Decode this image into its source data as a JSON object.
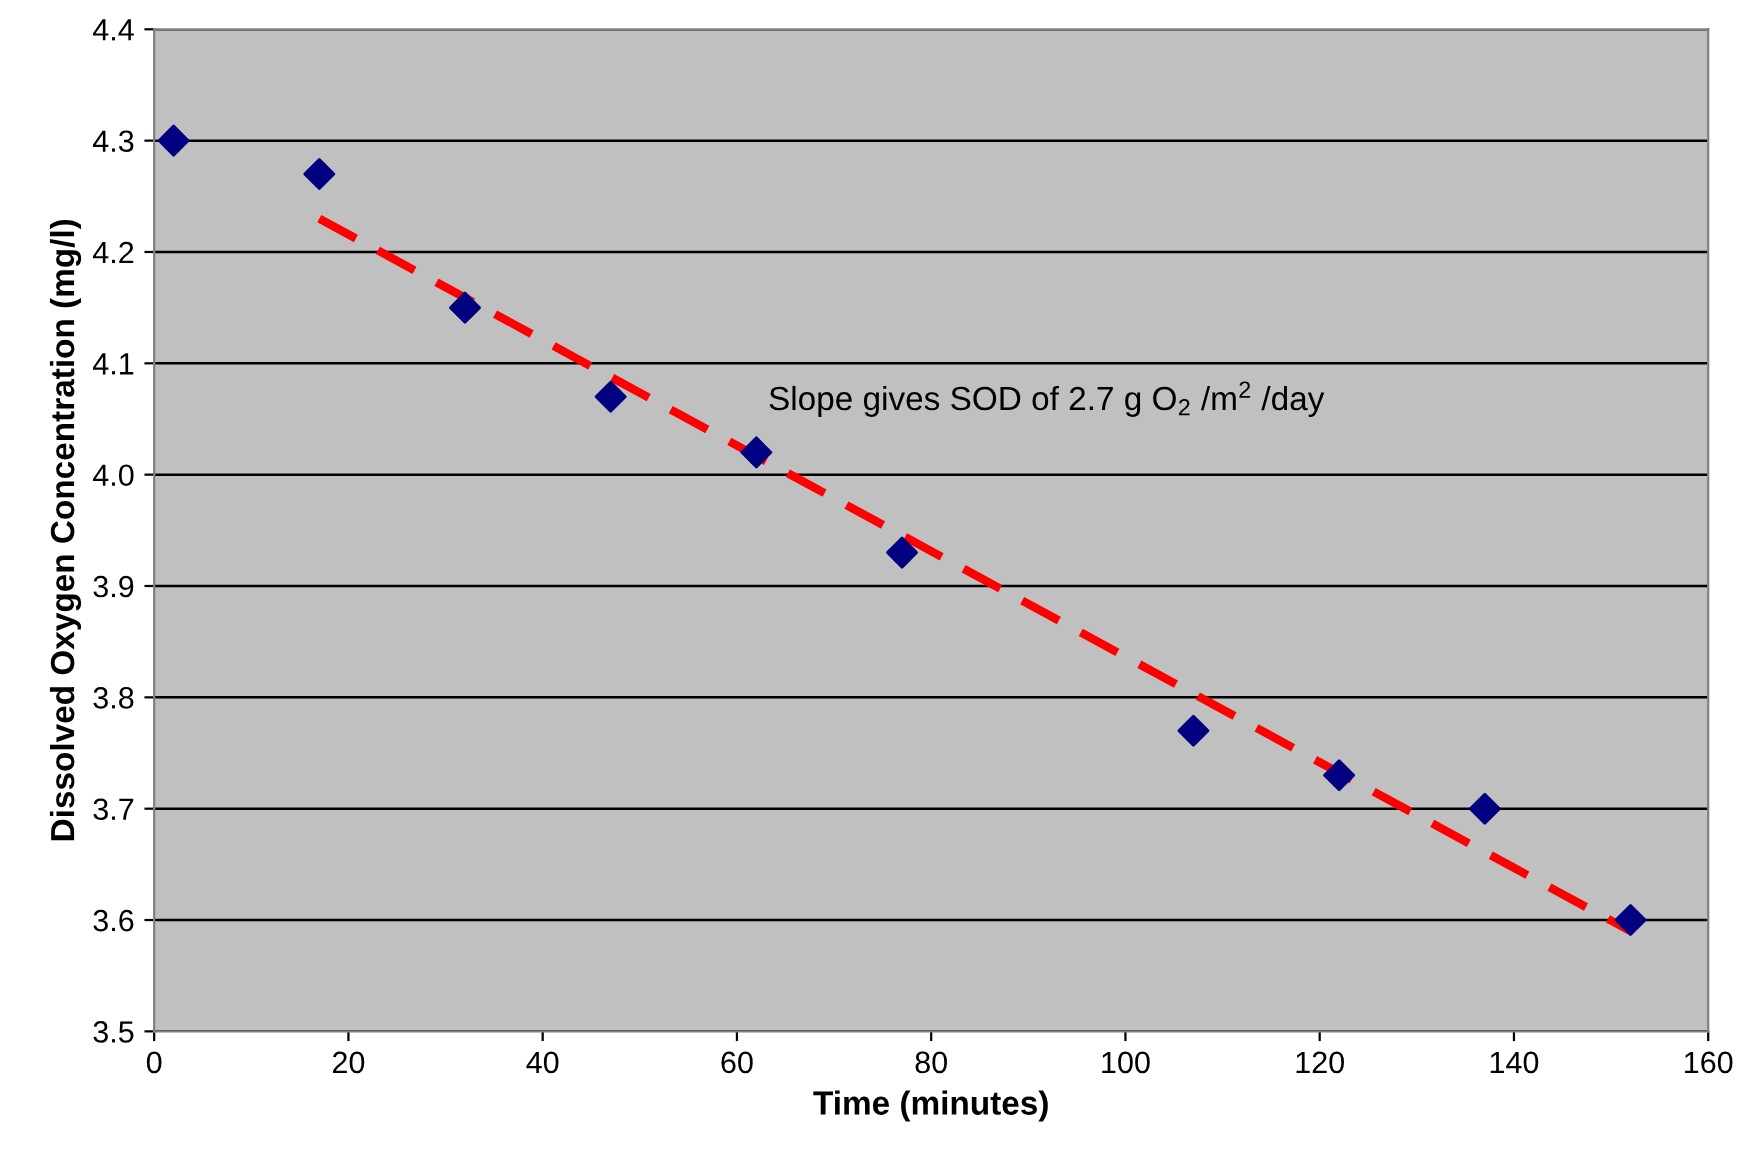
{
  "chart_data": {
    "type": "scatter",
    "xlabel": "Time (minutes)",
    "ylabel": "Dissolved Oxygen Concentration (mg/l)",
    "annotations": [
      "Slope gives SOD of 2.7 g O$_{2}$ /m$^{2}$ /day"
    ],
    "series": [
      {
        "color": "#000080",
        "marker": "diamond",
        "x": [
          2,
          17,
          32,
          47,
          62,
          77,
          107,
          122,
          137,
          152
        ],
        "values": [
          4.3,
          4.27,
          4.15,
          4.07,
          4.02,
          3.93,
          3.77,
          3.73,
          3.7,
          3.6
        ]
      },
      {
        "type": "line",
        "color": "#ff0000",
        "line_style": "dashed",
        "marker": "none",
        "x": [
          17,
          152
        ],
        "values": [
          4.23,
          3.59
        ]
      }
    ],
    "xlim": [
      0,
      160
    ],
    "xticks": [
      0,
      20,
      40,
      60,
      80,
      100,
      120,
      140,
      160
    ],
    "ylim": [
      3.5,
      4.4
    ],
    "yticks": [
      {
        "value": 3.5,
        "label": "3.5"
      },
      {
        "value": 3.6,
        "label": "3.6"
      },
      {
        "value": 3.7,
        "label": "3.7"
      },
      {
        "value": 3.8,
        "label": "3.8"
      },
      {
        "value": 3.9,
        "label": "3.9"
      },
      {
        "value": 4.0,
        "label": "4.0"
      },
      {
        "value": 4.1,
        "label": "4.1"
      },
      {
        "value": 4.2,
        "label": "4.2"
      },
      {
        "value": 4.3,
        "label": "4.3"
      },
      {
        "value": 4.4,
        "label": "4.4"
      }
    ],
    "grid": "y"
  }
}
